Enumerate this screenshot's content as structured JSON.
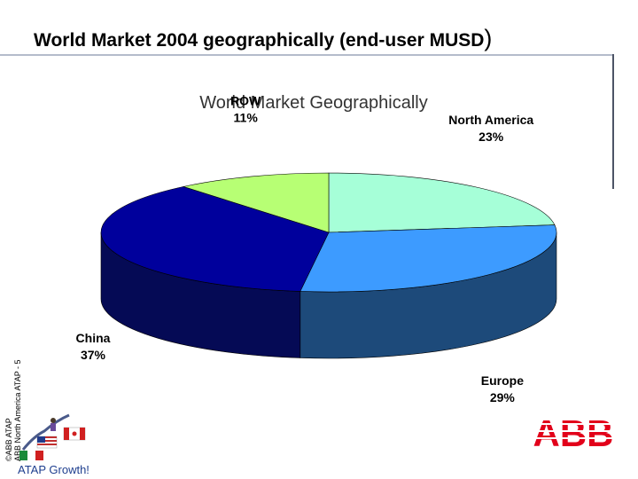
{
  "slide": {
    "title": "World Market 2004 geographically (end-user MUSD",
    "title_close": ")",
    "side_text_1": "©ABB ATAP",
    "side_text_2": "ABB North America ATAP - 5",
    "footer_brand": "ATAP Growth!",
    "logo_text": "ABB"
  },
  "colors": {
    "rule": "#b4bccb",
    "rule_dark": "#4d5466",
    "abb_red": "#e2001a"
  },
  "chart_data": {
    "type": "pie",
    "title": "World Market Geographically",
    "slices": [
      {
        "label": "North America",
        "value": 23,
        "value_label": "23%",
        "color": "#a6ffd8",
        "side_color": "#5d9f87"
      },
      {
        "label": "Europe",
        "value": 29,
        "value_label": "29%",
        "color": "#3d9bff",
        "side_color": "#1d4a7a"
      },
      {
        "label": "China",
        "value": 37,
        "value_label": "37%",
        "color": "#00009c",
        "side_color": "#050a55"
      },
      {
        "label": "ROW",
        "value": 11,
        "value_label": "11%",
        "color": "#b7ff74",
        "side_color": "#6a9a40"
      }
    ],
    "legend": "none"
  }
}
